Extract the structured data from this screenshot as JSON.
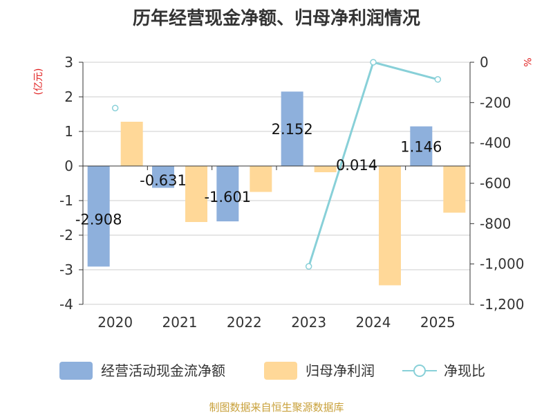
{
  "chart_data": {
    "type": "bar",
    "title": "历年经营现金净额、归母净利润情况",
    "categories": [
      "2020",
      "2021",
      "2022",
      "2023",
      "2024",
      "2025"
    ],
    "series": [
      {
        "name": "经营活动现金流净额",
        "type": "bar",
        "axis": "left",
        "color": "#8eb0dc",
        "values": [
          -2.908,
          -0.631,
          -1.601,
          2.152,
          0.014,
          1.146
        ],
        "labels": [
          "-2.908",
          "-0.631",
          "-1.601",
          "2.152",
          "0.014",
          "1.146"
        ]
      },
      {
        "name": "归母净利润",
        "type": "bar",
        "axis": "left",
        "color": "#ffd898",
        "values": [
          1.28,
          -1.62,
          -0.75,
          -0.18,
          -3.45,
          -1.35
        ]
      },
      {
        "name": "净现比",
        "type": "line",
        "axis": "right",
        "color": "#88d0d8",
        "values": [
          -227,
          null,
          null,
          -1012,
          0,
          -85
        ]
      }
    ],
    "left_axis": {
      "unit": "(亿元)",
      "ylim": [
        -4,
        3
      ],
      "ticks": [
        "3",
        "2",
        "1",
        "0",
        "-1",
        "-2",
        "-3",
        "-4"
      ]
    },
    "right_axis": {
      "unit": "%",
      "ylim": [
        -1200,
        0
      ],
      "ticks": [
        "0",
        "-200",
        "-400",
        "-600",
        "-800",
        "-1,000",
        "-1,200"
      ]
    },
    "legend": [
      "经营活动现金流净额",
      "归母净利润",
      "净现比"
    ],
    "grid": true,
    "source": "制图数据来自恒生聚源数据库"
  }
}
